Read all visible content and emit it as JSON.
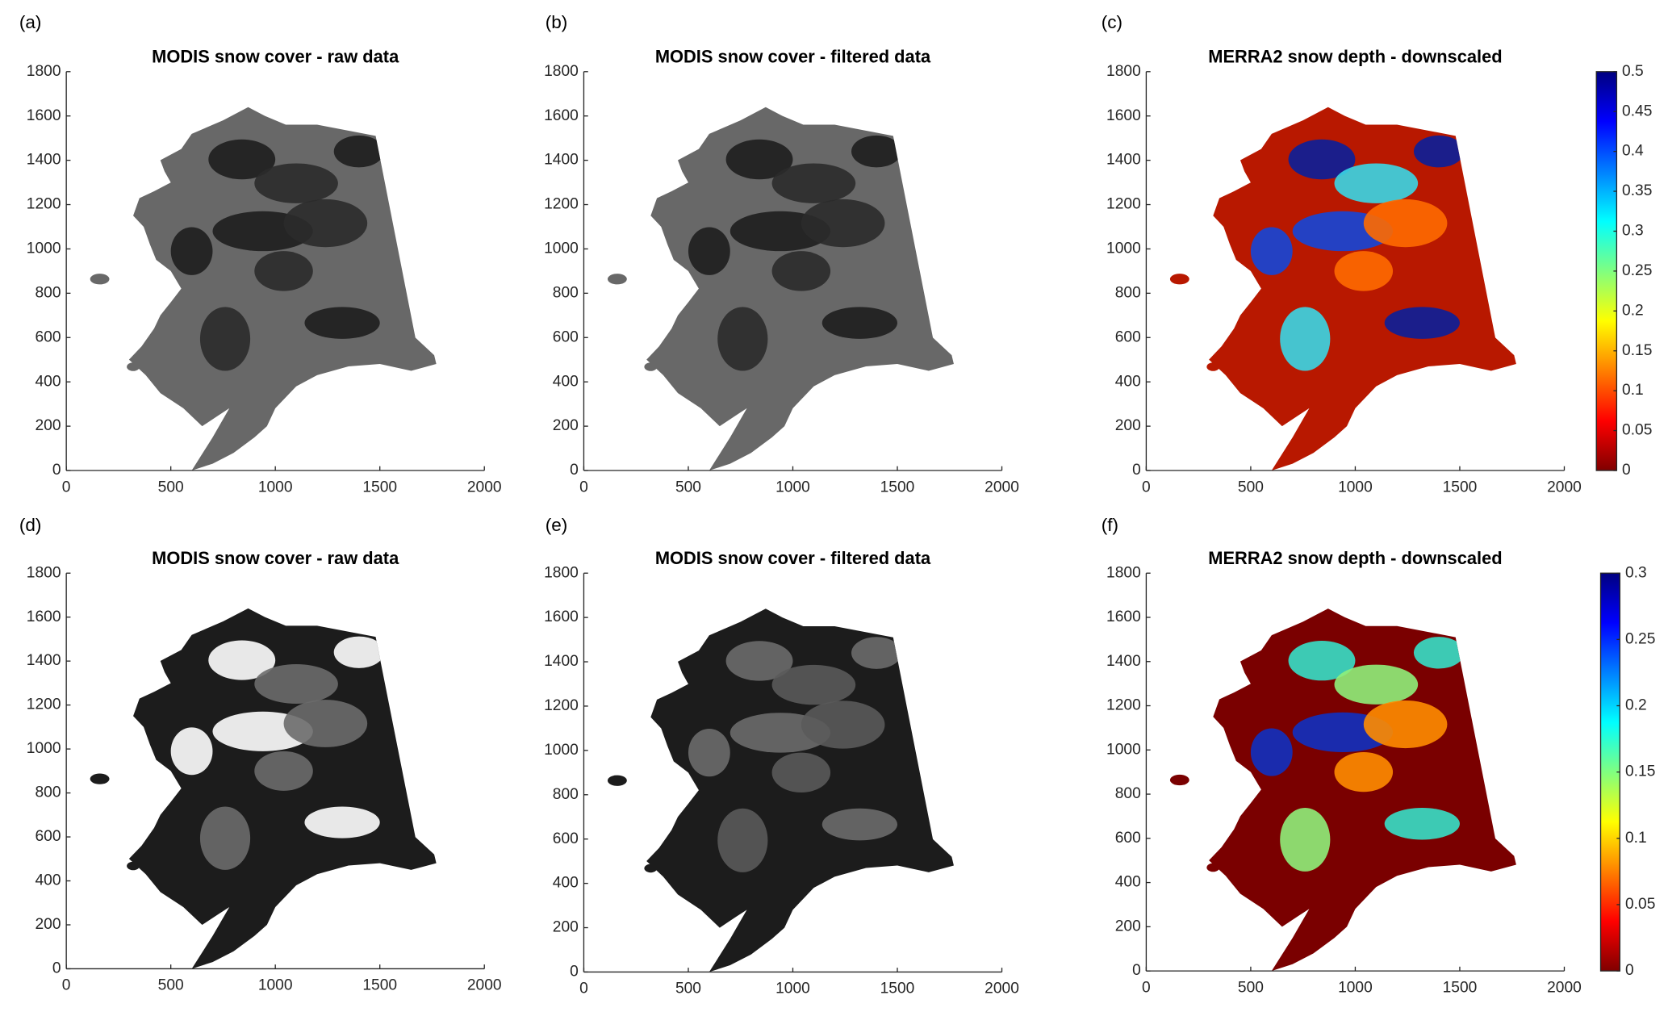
{
  "chart_data": [
    {
      "type": "map",
      "panel_label": "(a)",
      "title": "MODIS snow cover - raw data",
      "xlim": [
        0,
        2000
      ],
      "ylim": [
        0,
        1800
      ],
      "xticks": [
        0,
        500,
        1000,
        1500,
        2000
      ],
      "yticks": [
        0,
        200,
        400,
        600,
        800,
        1000,
        1200,
        1400,
        1600,
        1800
      ],
      "color": "#686868",
      "accent_colors": [
        "#1e1e1e",
        "#2b2b2b"
      ]
    },
    {
      "type": "map",
      "panel_label": "(b)",
      "title": "MODIS snow cover - filtered data",
      "xlim": [
        0,
        2000
      ],
      "ylim": [
        0,
        1800
      ],
      "xticks": [
        0,
        500,
        1000,
        1500,
        2000
      ],
      "yticks": [
        0,
        200,
        400,
        600,
        800,
        1000,
        1200,
        1400,
        1600,
        1800
      ],
      "color": "#686868",
      "accent_colors": [
        "#1e1e1e",
        "#2b2b2b"
      ]
    },
    {
      "type": "map",
      "panel_label": "(c)",
      "title": "MERRA2 snow depth - downscaled",
      "xlim": [
        0,
        2000
      ],
      "ylim": [
        0,
        1800
      ],
      "xticks": [
        0,
        500,
        1000,
        1500,
        2000
      ],
      "yticks": [
        0,
        200,
        400,
        600,
        800,
        1000,
        1200,
        1400,
        1600,
        1800
      ],
      "color": "#b81800",
      "accent_colors": [
        "#0a1f9a",
        "#3ad7e6",
        "#1446d8",
        "#ff6a00"
      ],
      "colorbar": {
        "lim": [
          0,
          0.5
        ],
        "ticks": [
          0,
          0.05,
          0.1,
          0.15,
          0.2,
          0.25,
          0.3,
          0.35,
          0.4,
          0.45,
          0.5
        ],
        "colors": [
          "#800000",
          "#ff0000",
          "#ff8000",
          "#ffff00",
          "#80ff80",
          "#00ffff",
          "#0080ff",
          "#0000ff",
          "#000080"
        ]
      }
    },
    {
      "type": "map",
      "panel_label": "(d)",
      "title": "MODIS snow cover - raw data",
      "xlim": [
        0,
        2000
      ],
      "ylim": [
        0,
        1800
      ],
      "xticks": [
        0,
        500,
        1000,
        1500,
        2000
      ],
      "yticks": [
        0,
        200,
        400,
        600,
        800,
        1000,
        1200,
        1400,
        1600,
        1800
      ],
      "color": "#1c1c1c",
      "accent_colors": [
        "#ffffff",
        "#6b6b6b"
      ]
    },
    {
      "type": "map",
      "panel_label": "(e)",
      "title": "MODIS snow cover - filtered data",
      "xlim": [
        0,
        2000
      ],
      "ylim": [
        0,
        1800
      ],
      "xticks": [
        0,
        500,
        1000,
        1500,
        2000
      ],
      "yticks": [
        0,
        200,
        400,
        600,
        800,
        1000,
        1200,
        1400,
        1600,
        1800
      ],
      "color": "#1c1c1c",
      "accent_colors": [
        "#6b6b6b",
        "#5a5a5a"
      ]
    },
    {
      "type": "map",
      "panel_label": "(f)",
      "title": "MERRA2 snow depth - downscaled",
      "xlim": [
        0,
        2000
      ],
      "ylim": [
        0,
        1800
      ],
      "xticks": [
        0,
        500,
        1000,
        1500,
        2000
      ],
      "yticks": [
        0,
        200,
        400,
        600,
        800,
        1000,
        1200,
        1400,
        1600,
        1800
      ],
      "color": "#7a0000",
      "accent_colors": [
        "#36e0c8",
        "#8ff07a",
        "#1030c0",
        "#ff8c00"
      ],
      "colorbar": {
        "lim": [
          0,
          0.3
        ],
        "ticks": [
          0,
          0.05,
          0.1,
          0.15,
          0.2,
          0.25,
          0.3
        ],
        "colors": [
          "#800000",
          "#ff0000",
          "#ff8000",
          "#ffff00",
          "#80ff80",
          "#00ffff",
          "#0080ff",
          "#0000ff",
          "#000080"
        ]
      }
    }
  ]
}
